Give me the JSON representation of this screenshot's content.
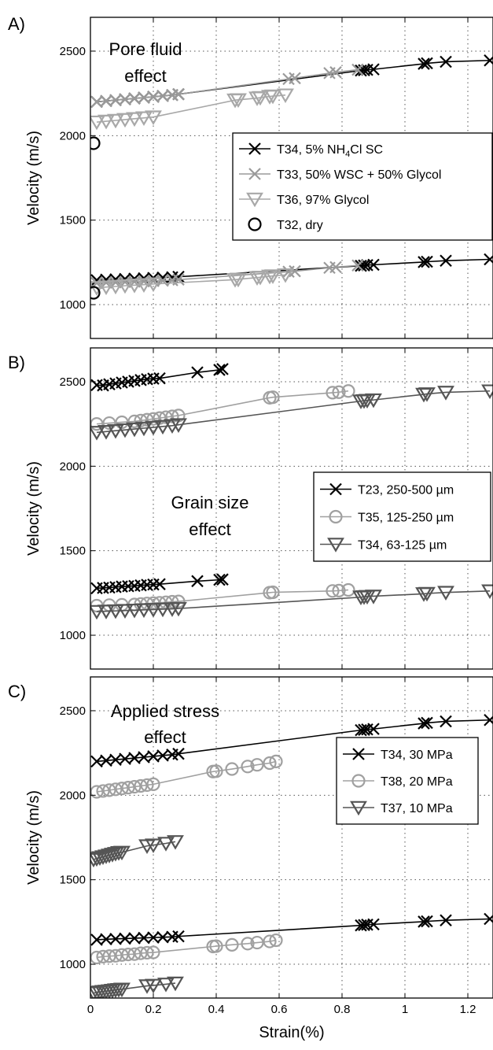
{
  "chart_data": [
    {
      "type": "line",
      "panel_label": "A)",
      "title_lines": [
        "Pore fluid",
        "effect"
      ],
      "ylabel": "Velocity (m/s)",
      "xlabel": "",
      "xlim": [
        0,
        1.28
      ],
      "ylim": [
        800,
        2700
      ],
      "xticks": [
        0,
        0.2,
        0.4,
        0.6,
        0.8,
        1,
        1.2
      ],
      "yticks": [
        1000,
        1500,
        2000,
        2500
      ],
      "grid": true,
      "legend_position": "right",
      "series": [
        {
          "name": "T34, 5% NH4Cl SC",
          "name_parts": [
            "T34, 5% NH",
            "4",
            "Cl SC"
          ],
          "color": "#000000",
          "marker": "x",
          "groups": [
            {
              "x": [
                0.02,
                0.05,
                0.08,
                0.11,
                0.14,
                0.17,
                0.2,
                0.23,
                0.26,
                0.28,
                0.86,
                0.87,
                0.88,
                0.9,
                1.06,
                1.07,
                1.13,
                1.27
              ],
              "y": [
                2200,
                2205,
                2210,
                2215,
                2220,
                2225,
                2230,
                2235,
                2240,
                2245,
                2385,
                2387,
                2389,
                2392,
                2425,
                2428,
                2437,
                2445
              ]
            },
            {
              "x": [
                0.02,
                0.05,
                0.08,
                0.11,
                0.14,
                0.17,
                0.2,
                0.23,
                0.26,
                0.28,
                0.86,
                0.87,
                0.88,
                0.9,
                1.06,
                1.07,
                1.13,
                1.27
              ],
              "y": [
                1145,
                1148,
                1150,
                1152,
                1154,
                1156,
                1158,
                1160,
                1162,
                1165,
                1230,
                1232,
                1234,
                1236,
                1252,
                1254,
                1260,
                1268
              ]
            }
          ]
        },
        {
          "name": "T33, 50% WSC + 50% Glycol",
          "color": "#9a9a9a",
          "marker": "x",
          "groups": [
            {
              "x": [
                0.02,
                0.05,
                0.08,
                0.11,
                0.14,
                0.17,
                0.2,
                0.23,
                0.26,
                0.28,
                0.63,
                0.65,
                0.76,
                0.78,
                0.85
              ],
              "y": [
                2200,
                2205,
                2210,
                2215,
                2220,
                2225,
                2230,
                2235,
                2240,
                2245,
                2335,
                2340,
                2370,
                2375,
                2390
              ]
            },
            {
              "x": [
                0.02,
                0.05,
                0.08,
                0.11,
                0.14,
                0.17,
                0.2,
                0.23,
                0.26,
                0.28,
                0.63,
                0.65,
                0.76,
                0.78,
                0.85
              ],
              "y": [
                1128,
                1130,
                1132,
                1134,
                1136,
                1138,
                1140,
                1142,
                1145,
                1148,
                1195,
                1198,
                1218,
                1222,
                1232
              ]
            }
          ]
        },
        {
          "name": "T36, 97% Glycol",
          "color": "#a8a8a8",
          "marker": "v",
          "groups": [
            {
              "x": [
                0.02,
                0.05,
                0.08,
                0.11,
                0.14,
                0.17,
                0.2,
                0.46,
                0.47,
                0.53,
                0.54,
                0.57,
                0.58,
                0.62
              ],
              "y": [
                2080,
                2085,
                2090,
                2095,
                2100,
                2105,
                2110,
                2210,
                2212,
                2222,
                2225,
                2232,
                2234,
                2240
              ]
            },
            {
              "x": [
                0.02,
                0.05,
                0.08,
                0.11,
                0.14,
                0.17,
                0.2,
                0.46,
                0.47,
                0.53,
                0.54,
                0.57,
                0.58,
                0.62
              ],
              "y": [
                1100,
                1104,
                1108,
                1112,
                1115,
                1118,
                1122,
                1148,
                1150,
                1160,
                1162,
                1168,
                1170,
                1176
              ]
            }
          ]
        },
        {
          "name": "T32, dry",
          "color": "#000000",
          "marker": "o",
          "groups": [
            {
              "x": [
                0.01
              ],
              "y": [
                1955
              ]
            },
            {
              "x": [
                0.01
              ],
              "y": [
                1070
              ]
            }
          ]
        }
      ]
    },
    {
      "type": "line",
      "panel_label": "B)",
      "title_lines": [
        "Grain size",
        "effect"
      ],
      "ylabel": "Velocity (m/s)",
      "xlabel": "",
      "xlim": [
        0,
        1.28
      ],
      "ylim": [
        800,
        2700
      ],
      "xticks": [
        0,
        0.2,
        0.4,
        0.6,
        0.8,
        1,
        1.2
      ],
      "yticks": [
        1000,
        1500,
        2000,
        2500
      ],
      "grid": true,
      "legend_position": "right",
      "series": [
        {
          "name": "T23, 250-500 µm",
          "name_parts": [
            "T23, 250-500 ",
            "µm"
          ],
          "color": "#000000",
          "marker": "x",
          "groups": [
            {
              "x": [
                0.02,
                0.04,
                0.06,
                0.08,
                0.1,
                0.12,
                0.14,
                0.16,
                0.18,
                0.2,
                0.22,
                0.34,
                0.41,
                0.42
              ],
              "y": [
                2480,
                2478,
                2485,
                2490,
                2495,
                2500,
                2505,
                2510,
                2515,
                2518,
                2520,
                2555,
                2570,
                2575
              ]
            },
            {
              "x": [
                0.02,
                0.04,
                0.06,
                0.08,
                0.1,
                0.12,
                0.14,
                0.16,
                0.18,
                0.2,
                0.22,
                0.34,
                0.41,
                0.42
              ],
              "y": [
                1278,
                1280,
                1282,
                1285,
                1288,
                1290,
                1292,
                1295,
                1298,
                1300,
                1302,
                1320,
                1328,
                1330
              ]
            }
          ]
        },
        {
          "name": "T35, 125-250 µm",
          "name_parts": [
            "T35, 125-250 ",
            "µm"
          ],
          "color": "#a0a0a0",
          "marker": "o",
          "groups": [
            {
              "x": [
                0.02,
                0.06,
                0.1,
                0.14,
                0.16,
                0.18,
                0.2,
                0.22,
                0.24,
                0.26,
                0.28,
                0.57,
                0.58,
                0.77,
                0.79,
                0.82
              ],
              "y": [
                2250,
                2255,
                2260,
                2265,
                2270,
                2275,
                2280,
                2285,
                2290,
                2295,
                2300,
                2405,
                2408,
                2435,
                2438,
                2445
              ]
            },
            {
              "x": [
                0.02,
                0.06,
                0.1,
                0.14,
                0.16,
                0.18,
                0.2,
                0.22,
                0.24,
                0.26,
                0.28,
                0.57,
                0.58,
                0.77,
                0.79,
                0.82
              ],
              "y": [
                1175,
                1178,
                1180,
                1182,
                1185,
                1188,
                1190,
                1192,
                1195,
                1198,
                1200,
                1252,
                1254,
                1262,
                1264,
                1268
              ]
            }
          ]
        },
        {
          "name": "T34, 63-125 µm",
          "name_parts": [
            "T34,   63-125 ",
            "µm"
          ],
          "color": "#555555",
          "marker": "v",
          "groups": [
            {
              "x": [
                0.02,
                0.05,
                0.08,
                0.11,
                0.14,
                0.17,
                0.2,
                0.23,
                0.26,
                0.28,
                0.86,
                0.87,
                0.88,
                0.9,
                1.06,
                1.07,
                1.13,
                1.27
              ],
              "y": [
                2200,
                2205,
                2210,
                2215,
                2220,
                2225,
                2230,
                2235,
                2240,
                2245,
                2385,
                2387,
                2389,
                2392,
                2425,
                2428,
                2437,
                2445
              ]
            },
            {
              "x": [
                0.02,
                0.05,
                0.08,
                0.11,
                0.14,
                0.17,
                0.2,
                0.23,
                0.26,
                0.28,
                0.86,
                0.87,
                0.88,
                0.9,
                1.06,
                1.07,
                1.13,
                1.27
              ],
              "y": [
                1140,
                1142,
                1144,
                1146,
                1148,
                1150,
                1152,
                1154,
                1156,
                1158,
                1225,
                1227,
                1229,
                1231,
                1245,
                1247,
                1253,
                1262
              ]
            }
          ]
        }
      ]
    },
    {
      "type": "line",
      "panel_label": "C)",
      "title_lines": [
        "Applied stress",
        "effect"
      ],
      "ylabel": "Velocity (m/s)",
      "xlabel": "Strain(%)",
      "xlim": [
        0,
        1.28
      ],
      "ylim": [
        800,
        2700
      ],
      "xticks": [
        0,
        0.2,
        0.4,
        0.6,
        0.8,
        1,
        1.2
      ],
      "yticks": [
        1000,
        1500,
        2000,
        2500
      ],
      "grid": true,
      "legend_position": "right",
      "series": [
        {
          "name": "T34, 30 MPa",
          "color": "#000000",
          "marker": "x",
          "groups": [
            {
              "x": [
                0.02,
                0.05,
                0.08,
                0.11,
                0.14,
                0.17,
                0.2,
                0.23,
                0.26,
                0.28,
                0.86,
                0.87,
                0.88,
                0.9,
                1.06,
                1.07,
                1.13,
                1.27
              ],
              "y": [
                2200,
                2205,
                2210,
                2215,
                2220,
                2225,
                2230,
                2235,
                2240,
                2245,
                2385,
                2387,
                2389,
                2392,
                2425,
                2428,
                2437,
                2445
              ]
            },
            {
              "x": [
                0.02,
                0.05,
                0.08,
                0.11,
                0.14,
                0.17,
                0.2,
                0.23,
                0.26,
                0.28,
                0.86,
                0.87,
                0.88,
                0.9,
                1.06,
                1.07,
                1.13,
                1.27
              ],
              "y": [
                1145,
                1148,
                1150,
                1152,
                1154,
                1156,
                1158,
                1160,
                1162,
                1165,
                1230,
                1232,
                1234,
                1236,
                1252,
                1254,
                1260,
                1268
              ]
            }
          ]
        },
        {
          "name": "T38, 20 MPa",
          "color": "#a0a0a0",
          "marker": "o",
          "groups": [
            {
              "x": [
                0.02,
                0.04,
                0.06,
                0.08,
                0.1,
                0.12,
                0.14,
                0.16,
                0.18,
                0.2,
                0.39,
                0.4,
                0.45,
                0.5,
                0.53,
                0.57,
                0.59
              ],
              "y": [
                2020,
                2025,
                2030,
                2035,
                2040,
                2045,
                2050,
                2055,
                2060,
                2065,
                2140,
                2142,
                2155,
                2170,
                2180,
                2190,
                2200
              ]
            },
            {
              "x": [
                0.02,
                0.04,
                0.06,
                0.08,
                0.1,
                0.12,
                0.14,
                0.16,
                0.18,
                0.2,
                0.39,
                0.4,
                0.45,
                0.5,
                0.53,
                0.57,
                0.59
              ],
              "y": [
                1040,
                1045,
                1048,
                1050,
                1055,
                1058,
                1060,
                1065,
                1068,
                1070,
                1105,
                1107,
                1115,
                1122,
                1128,
                1135,
                1142
              ]
            }
          ]
        },
        {
          "name": "T37, 10 MPa",
          "color": "#555555",
          "marker": "v",
          "groups": [
            {
              "x": [
                0.01,
                0.02,
                0.03,
                0.04,
                0.05,
                0.06,
                0.07,
                0.08,
                0.09,
                0.1,
                0.18,
                0.2,
                0.24,
                0.27
              ],
              "y": [
                1620,
                1625,
                1630,
                1635,
                1640,
                1645,
                1650,
                1655,
                1660,
                1662,
                1700,
                1705,
                1715,
                1725
              ]
            },
            {
              "x": [
                0.01,
                0.02,
                0.03,
                0.04,
                0.05,
                0.06,
                0.07,
                0.08,
                0.09,
                0.1,
                0.18,
                0.2,
                0.24,
                0.27
              ],
              "y": [
                830,
                832,
                835,
                838,
                840,
                842,
                845,
                848,
                850,
                852,
                872,
                875,
                882,
                888
              ]
            }
          ]
        }
      ]
    }
  ]
}
